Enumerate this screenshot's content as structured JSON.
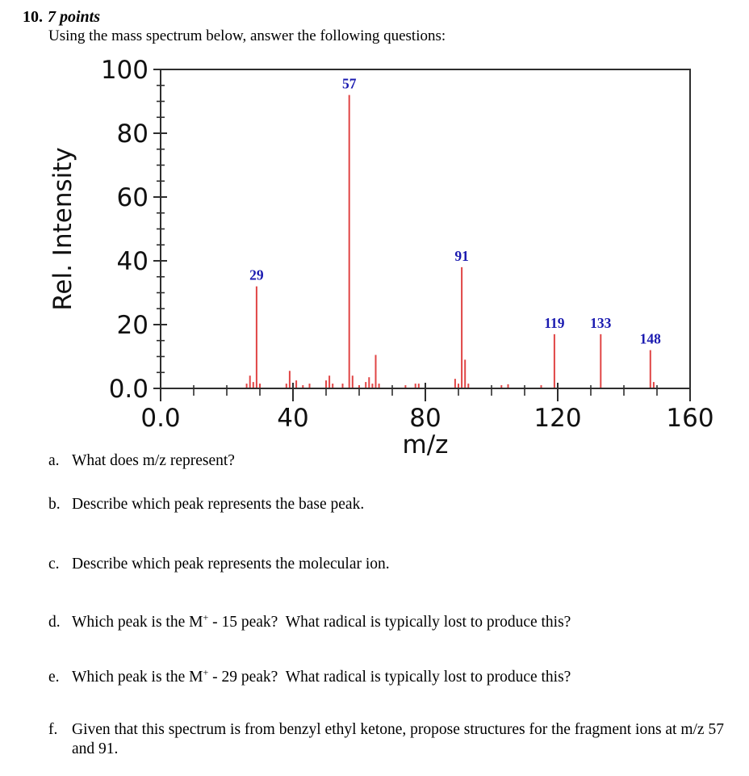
{
  "page": {
    "header": {
      "number": "10.",
      "points": "7 points",
      "instruction": "Using the mass spectrum below, answer the following questions:"
    }
  },
  "chart_data": {
    "type": "bar",
    "subtype": "mass-spectrum-sticks",
    "title": "",
    "xlabel": "m/z",
    "ylabel": "Rel. Intensity",
    "xlim": [
      0,
      160
    ],
    "ylim": [
      0,
      100
    ],
    "grid": false,
    "x_major_ticks": {
      "values": [
        0,
        40,
        80,
        120,
        160
      ],
      "labels": [
        "0.0",
        "40",
        "80",
        "120",
        "160"
      ]
    },
    "x_minor_step": 10,
    "y_major_ticks": {
      "values": [
        0,
        20,
        40,
        60,
        80,
        100
      ],
      "labels": [
        "0.0",
        "20",
        "40",
        "60",
        "80",
        "100"
      ]
    },
    "y_minor_step": 5,
    "colors": {
      "peak": "#e04545",
      "annotation": "#1a1ab0",
      "axis": "#2e2e2e",
      "tick_label": "#111111"
    },
    "peaks": [
      {
        "mz": 26,
        "intensity": 1.5
      },
      {
        "mz": 27,
        "intensity": 4
      },
      {
        "mz": 28,
        "intensity": 2
      },
      {
        "mz": 29,
        "intensity": 32,
        "labeled": true
      },
      {
        "mz": 30,
        "intensity": 1.5
      },
      {
        "mz": 38,
        "intensity": 1.5
      },
      {
        "mz": 39,
        "intensity": 5.5
      },
      {
        "mz": 41,
        "intensity": 2.5
      },
      {
        "mz": 43,
        "intensity": 1
      },
      {
        "mz": 45,
        "intensity": 1.5
      },
      {
        "mz": 50,
        "intensity": 2.5
      },
      {
        "mz": 51,
        "intensity": 4
      },
      {
        "mz": 52,
        "intensity": 1.5
      },
      {
        "mz": 55,
        "intensity": 1.5
      },
      {
        "mz": 57,
        "intensity": 92,
        "labeled": true
      },
      {
        "mz": 58,
        "intensity": 4
      },
      {
        "mz": 60,
        "intensity": 1
      },
      {
        "mz": 62,
        "intensity": 2
      },
      {
        "mz": 63,
        "intensity": 3.5
      },
      {
        "mz": 64,
        "intensity": 1.5
      },
      {
        "mz": 65,
        "intensity": 10.5
      },
      {
        "mz": 66,
        "intensity": 1.5
      },
      {
        "mz": 74,
        "intensity": 1
      },
      {
        "mz": 77,
        "intensity": 1.5
      },
      {
        "mz": 78,
        "intensity": 1.5
      },
      {
        "mz": 89,
        "intensity": 3
      },
      {
        "mz": 90,
        "intensity": 1.5
      },
      {
        "mz": 91,
        "intensity": 38,
        "labeled": true
      },
      {
        "mz": 92,
        "intensity": 9
      },
      {
        "mz": 93,
        "intensity": 1.5
      },
      {
        "mz": 103,
        "intensity": 1
      },
      {
        "mz": 105,
        "intensity": 1.3
      },
      {
        "mz": 115,
        "intensity": 1
      },
      {
        "mz": 119,
        "intensity": 17,
        "labeled": true
      },
      {
        "mz": 133,
        "intensity": 17,
        "labeled": true
      },
      {
        "mz": 148,
        "intensity": 12,
        "labeled": true
      },
      {
        "mz": 149,
        "intensity": 2
      }
    ]
  },
  "questions": [
    {
      "letter": "a.",
      "pre": "What does m/z represent?",
      "sup": "",
      "post": ""
    },
    {
      "letter": "b.",
      "pre": "Describe which peak represents the base peak.",
      "sup": "",
      "post": ""
    },
    {
      "letter": "c.",
      "pre": "Describe which peak represents the molecular ion.",
      "sup": "",
      "post": ""
    },
    {
      "letter": "d.",
      "pre": "Which peak is the M",
      "sup": "+",
      "post": " - 15 peak?  What radical is typically lost to produce this?"
    },
    {
      "letter": "e.",
      "pre": "Which peak is the M",
      "sup": "+",
      "post": " - 29 peak?  What radical is typically lost to produce this?"
    },
    {
      "letter": "f.",
      "pre": "Given that this spectrum is from benzyl ethyl ketone, propose structures for the fragment ions at m/z 57 and 91.",
      "sup": "",
      "post": ""
    }
  ]
}
